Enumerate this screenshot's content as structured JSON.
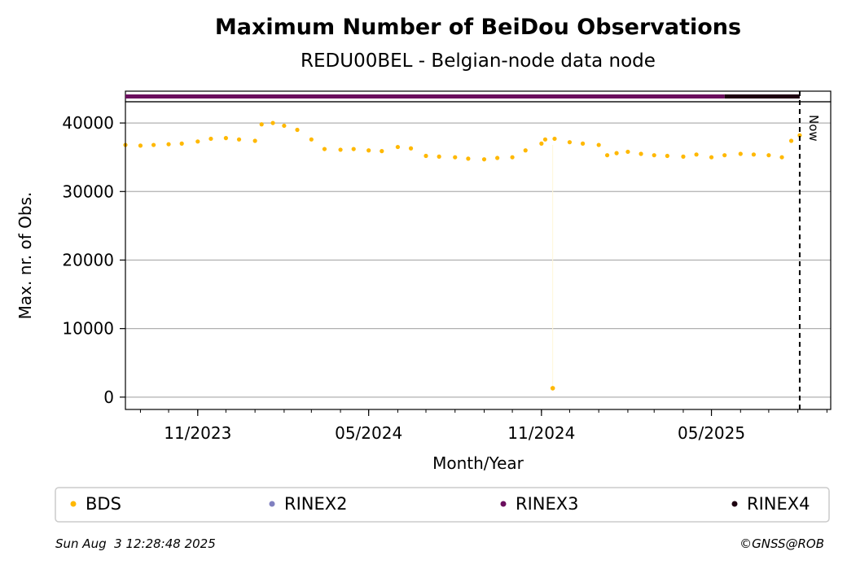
{
  "chart_data": {
    "type": "scatter",
    "title": "Maximum Number of BeiDou Observations",
    "subtitle": "REDU00BEL - Belgian-node data node",
    "xlabel": "Month/Year",
    "ylabel": "Max. nr. of Obs.",
    "x_range": [
      "2023-08-16",
      "2025-09-05"
    ],
    "ylim": [
      -1800,
      43100
    ],
    "y_ticks": [
      0,
      10000,
      20000,
      30000,
      40000
    ],
    "y_tick_labels": [
      "0",
      "10000",
      "20000",
      "30000",
      "40000"
    ],
    "x_ticks": [
      "2023-11-01",
      "2024-05-01",
      "2024-11-01",
      "2025-05-01"
    ],
    "x_tick_labels": [
      "11/2023",
      "05/2024",
      "11/2024",
      "05/2025"
    ],
    "grid": "horizontal",
    "now_date": "2025-08-03",
    "now_label": "Now",
    "series": [
      {
        "name": "BDS",
        "color": "#ffb800",
        "points": [
          [
            "2023-08-16",
            36800
          ],
          [
            "2023-09-01",
            36700
          ],
          [
            "2023-09-15",
            36800
          ],
          [
            "2023-10-01",
            36900
          ],
          [
            "2023-10-15",
            37000
          ],
          [
            "2023-11-01",
            37300
          ],
          [
            "2023-11-15",
            37700
          ],
          [
            "2023-12-01",
            37800
          ],
          [
            "2023-12-15",
            37600
          ],
          [
            "2024-01-01",
            37400
          ],
          [
            "2024-01-08",
            39800
          ],
          [
            "2024-01-20",
            40000
          ],
          [
            "2024-02-01",
            39600
          ],
          [
            "2024-02-15",
            39000
          ],
          [
            "2024-03-01",
            37600
          ],
          [
            "2024-03-15",
            36200
          ],
          [
            "2024-04-01",
            36100
          ],
          [
            "2024-04-15",
            36200
          ],
          [
            "2024-05-01",
            36000
          ],
          [
            "2024-05-15",
            35900
          ],
          [
            "2024-06-01",
            36500
          ],
          [
            "2024-06-15",
            36300
          ],
          [
            "2024-07-01",
            35200
          ],
          [
            "2024-07-15",
            35100
          ],
          [
            "2024-08-01",
            35000
          ],
          [
            "2024-08-15",
            34800
          ],
          [
            "2024-09-01",
            34700
          ],
          [
            "2024-09-15",
            34900
          ],
          [
            "2024-10-01",
            35000
          ],
          [
            "2024-10-15",
            36000
          ],
          [
            "2024-11-01",
            37000
          ],
          [
            "2024-11-05",
            37600
          ],
          [
            "2024-11-15",
            37700
          ],
          [
            "2024-12-01",
            37200
          ],
          [
            "2024-12-15",
            37000
          ],
          [
            "2025-01-01",
            36800
          ],
          [
            "2025-01-10",
            35300
          ],
          [
            "2025-01-20",
            35600
          ],
          [
            "2025-02-01",
            35800
          ],
          [
            "2025-02-15",
            35500
          ],
          [
            "2025-03-01",
            35300
          ],
          [
            "2025-03-15",
            35200
          ],
          [
            "2025-04-01",
            35100
          ],
          [
            "2025-04-15",
            35400
          ],
          [
            "2025-05-01",
            35000
          ],
          [
            "2025-05-15",
            35300
          ],
          [
            "2025-06-01",
            35500
          ],
          [
            "2025-06-15",
            35400
          ],
          [
            "2025-07-01",
            35300
          ],
          [
            "2025-07-15",
            35000
          ],
          [
            "2025-07-25",
            37400
          ],
          [
            "2025-08-03",
            38200
          ]
        ],
        "outliers": [
          [
            "2024-11-13",
            1300
          ]
        ]
      },
      {
        "name": "RINEX2",
        "color": "#8080c0",
        "points": []
      },
      {
        "name": "RINEX3",
        "color": "#6b0f5e",
        "row_from": "2023-08-16",
        "row_to": "2025-05-15"
      },
      {
        "name": "RINEX4",
        "color": "#1e0010",
        "row_from": "2025-05-15",
        "row_to": "2025-08-03"
      }
    ]
  },
  "footer": {
    "timestamp": "Sun Aug  3 12:28:48 2025",
    "credit": "©GNSS@ROB"
  }
}
